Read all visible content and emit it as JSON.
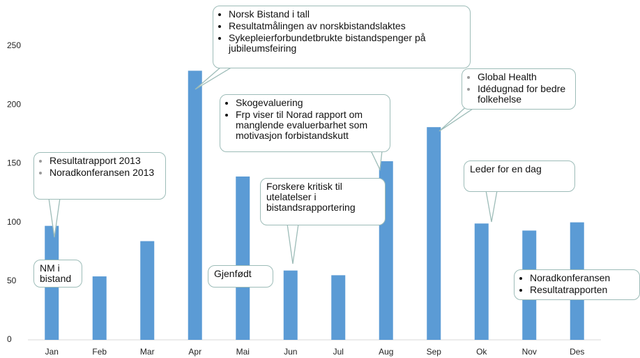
{
  "chart_data": {
    "type": "bar",
    "categories": [
      "Jan",
      "Feb",
      "Mar",
      "Apr",
      "Mai",
      "Jun",
      "Jul",
      "Aug",
      "Sep",
      "Ok",
      "Nov",
      "Des"
    ],
    "values": [
      97,
      54,
      84,
      229,
      139,
      59,
      55,
      152,
      181,
      99,
      93,
      100
    ],
    "color": "#5b9bd5",
    "ylim": [
      0,
      250
    ],
    "yticks": [
      0,
      50,
      100,
      150,
      200,
      250
    ],
    "grid": false,
    "annotations": [
      {
        "items": [
          "Resultatrapport 2013",
          "Noradkonferansen 2013"
        ]
      },
      {
        "text": "NM i bistand"
      },
      {
        "items": [
          "Norsk Bistand i tall",
          "Resultatmålingen av norskbistandslaktes",
          "Sykepleierforbundetbrukte bistandspenger på jubileumsfeiring"
        ]
      },
      {
        "text": "Gjenfødt"
      },
      {
        "items": [
          "Skogevaluering",
          "Frp viser til Norad rapport om manglende evaluerbarhet som motivasjon forbistandskutt"
        ]
      },
      {
        "text": "Forskere kritisk til utelatelser i bistandsrapportering"
      },
      {
        "items": [
          "Global Health",
          "Idédugnad for bedre folkehelse"
        ]
      },
      {
        "text": "Leder for en dag"
      },
      {
        "items": [
          "Noradkonferansen",
          "Resultatrapporten"
        ]
      }
    ]
  }
}
